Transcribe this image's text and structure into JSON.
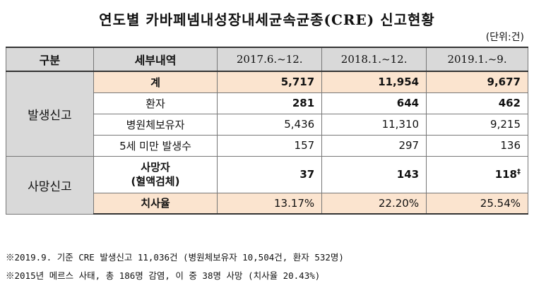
{
  "title": "연도별 카바페넴내성장내세균속균종(CRE) 신고현황",
  "unit": "(단위:건)",
  "header": {
    "category": "구분",
    "detail": "세부내역",
    "years": [
      "2017.6.~12.",
      "2018.1.~12.",
      "2019.1.~9."
    ]
  },
  "groups": {
    "occurrence": "발생신고",
    "death": "사망신고"
  },
  "rows": [
    {
      "label": "계",
      "values": [
        "5,717",
        "11,954",
        "9,677"
      ]
    },
    {
      "label": "환자",
      "values": [
        "281",
        "644",
        "462"
      ]
    },
    {
      "label": "병원체보유자",
      "values": [
        "5,436",
        "11,310",
        "9,215"
      ]
    },
    {
      "label": "5세 미만 발생수",
      "values": [
        "157",
        "297",
        "136"
      ]
    },
    {
      "label_line1": "사망자",
      "label_line2": "(혈액검체)",
      "values": [
        "37",
        "143",
        "118"
      ],
      "marker": "‡"
    },
    {
      "label": "치사율",
      "values": [
        "13.17%",
        "22.20%",
        "25.54%"
      ]
    }
  ],
  "notes": [
    "※2019.9. 기준 CRE 발생신고 11,036건 (병원체보유자 10,504건, 환자 532명)",
    "※2015년 메르스 사태, 총 186명 감염, 이 중 38명 사망 (치사율 20.43%)"
  ]
}
